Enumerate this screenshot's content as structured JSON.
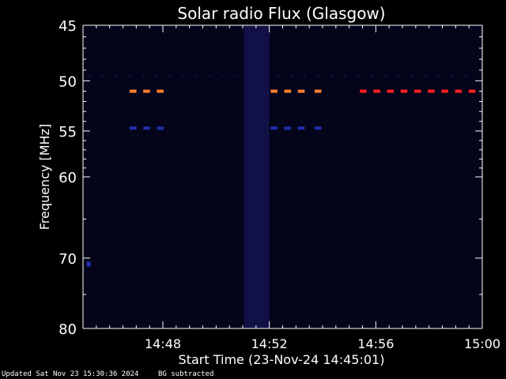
{
  "chart_data": {
    "type": "heatmap",
    "title": "Solar radio Flux (Glasgow)",
    "xlabel": "Start Time (23-Nov-24 14:45:01)",
    "ylabel": "Frequency [MHz]",
    "x_unit": "minutes since 14:45:01",
    "xlim": [
      0,
      15
    ],
    "ylim": [
      45,
      80
    ],
    "y_scale": "log",
    "x_ticks": [
      {
        "value": 3,
        "label": "14:48"
      },
      {
        "value": 7,
        "label": "14:52"
      },
      {
        "value": 11,
        "label": "14:56"
      },
      {
        "value": 15,
        "label": "15:00"
      }
    ],
    "y_ticks": [
      {
        "value": 45,
        "label": "45"
      },
      {
        "value": 50,
        "label": "50"
      },
      {
        "value": 55,
        "label": "55"
      },
      {
        "value": 60,
        "label": "60"
      },
      {
        "value": 70,
        "label": "70"
      },
      {
        "value": 80,
        "label": "80"
      }
    ],
    "colors": {
      "background": "#000000",
      "plot_bg": "#04041a",
      "strong": "#ff2020",
      "medium": "#ff8030",
      "weak": "#2030b0",
      "faint": "#141450"
    },
    "features": [
      {
        "kind": "burst",
        "freq": 51,
        "t_start": 1.75,
        "t_end": 3.15,
        "level": "medium"
      },
      {
        "kind": "burst",
        "freq": 51,
        "t_start": 7.05,
        "t_end": 8.15,
        "level": "medium"
      },
      {
        "kind": "burst",
        "freq": 51,
        "t_start": 8.7,
        "t_end": 9.2,
        "level": "medium"
      },
      {
        "kind": "burst",
        "freq": 51,
        "t_start": 10.4,
        "t_end": 14.8,
        "level": "strong"
      },
      {
        "kind": "burst",
        "freq": 54.7,
        "t_start": 1.75,
        "t_end": 3.15,
        "level": "weak"
      },
      {
        "kind": "burst",
        "freq": 54.7,
        "t_start": 7.05,
        "t_end": 8.15,
        "level": "weak"
      },
      {
        "kind": "burst",
        "freq": 54.7,
        "t_start": 8.7,
        "t_end": 9.2,
        "level": "weak"
      },
      {
        "kind": "band",
        "freq": 49.6,
        "t_start": 0.2,
        "t_end": 14.8,
        "level": "faint"
      },
      {
        "kind": "vertical",
        "t_start": 6.05,
        "t_end": 7.0,
        "level": "faint"
      },
      {
        "kind": "spot",
        "freq": 70.8,
        "t_start": 0.05,
        "t_end": 0.15,
        "level": "weak"
      }
    ]
  },
  "footer": {
    "updated": "Updated Sat Nov 23 15:30:36 2024",
    "bg_note": "BG subtracted"
  }
}
